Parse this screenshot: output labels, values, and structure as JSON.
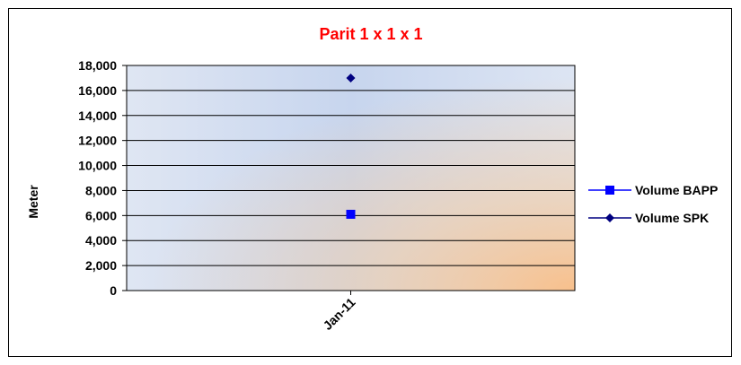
{
  "chart_data": {
    "type": "scatter",
    "title": "Parit 1 x 1 x 1",
    "title_color": "#ff0000",
    "xlabel": "",
    "ylabel": "Meter",
    "categories": [
      "Jan-11"
    ],
    "ylim": [
      0,
      18000
    ],
    "yticks": [
      "0",
      "2,000",
      "4,000",
      "6,000",
      "8,000",
      "10,000",
      "12,000",
      "14,000",
      "16,000",
      "18,000"
    ],
    "grid": true,
    "legend_position": "right",
    "series": [
      {
        "name": "Volume BAPP",
        "values": [
          6100
        ],
        "color": "#0000ff",
        "marker": "square"
      },
      {
        "name": "Volume SPK",
        "values": [
          17000
        ],
        "color": "#000080",
        "marker": "diamond"
      }
    ]
  }
}
